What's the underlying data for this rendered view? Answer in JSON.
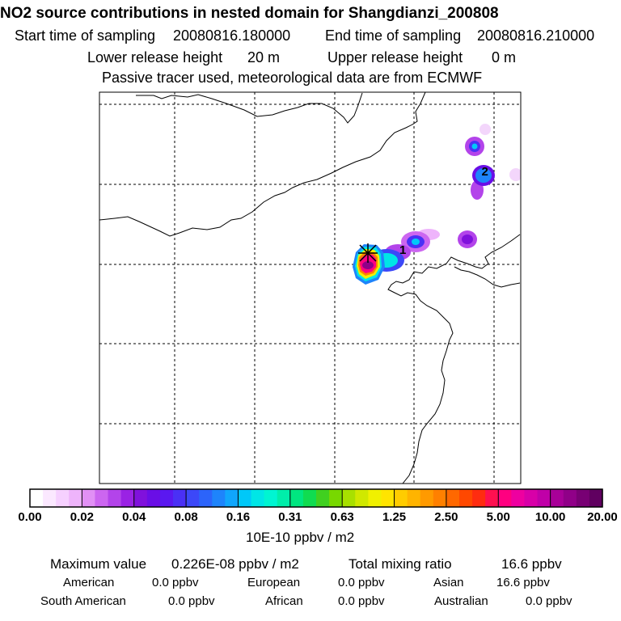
{
  "header": {
    "title": "NO2 source contributions in nested domain for Shangdianzi_200808",
    "start_label": "Start time of sampling",
    "start_value": "20080816.180000",
    "end_label": "End time of sampling",
    "end_value": "20080816.210000",
    "lower_label": "Lower release height",
    "lower_value": "20 m",
    "upper_label": "Upper release height",
    "upper_value": "0 m",
    "note": "Passive tracer used, meteorological data are from ECMWF"
  },
  "chart_data": {
    "type": "heatmap",
    "title": "NO2 source contributions in nested domain for Shangdianzi_200808",
    "colorbar_label": "10E-10 ppbv / m2",
    "colorbar_ticks": [
      "0.00",
      "0.02",
      "0.04",
      "0.08",
      "0.16",
      "0.31",
      "0.63",
      "1.25",
      "2.50",
      "5.00",
      "10.00",
      "20.00"
    ],
    "colorbar_colors": [
      "#ffffff",
      "#fbe8ff",
      "#f6d0ff",
      "#eeb4fb",
      "#e190f5",
      "#cc66f0",
      "#b344ea",
      "#9a22e4",
      "#8011dc",
      "#6a0ee6",
      "#5a18f0",
      "#4a30f5",
      "#3c48f8",
      "#2c64fa",
      "#1e84fb",
      "#10a6fc",
      "#00c8f8",
      "#00e6e6",
      "#00f5d2",
      "#00eeaa",
      "#00e680",
      "#10dc50",
      "#40d020",
      "#78d800",
      "#a8e000",
      "#d0e800",
      "#f0f000",
      "#ffe400",
      "#ffcc00",
      "#ffb400",
      "#ff9a00",
      "#ff8000",
      "#ff6800",
      "#ff4800",
      "#ff2c10",
      "#ff1050",
      "#ff0080",
      "#ee00a0",
      "#d800a8",
      "#c000a8",
      "#a80098",
      "#900088",
      "#780074",
      "#600060"
    ],
    "markers": [
      {
        "label": "1",
        "lon_frac": 0.72,
        "lat_frac": 0.405
      },
      {
        "label": "2",
        "lon_frac": 0.915,
        "lat_frac": 0.205
      }
    ],
    "grid": true
  },
  "stats": {
    "max_label": "Maximum value",
    "max_value": "0.226E-08 ppbv / m2",
    "total_label": "Total mixing ratio",
    "total_value": "16.6 ppbv",
    "regions": [
      {
        "name": "American",
        "value": "0.0 ppbv"
      },
      {
        "name": "European",
        "value": "0.0 ppbv"
      },
      {
        "name": "Asian",
        "value": "16.6 ppbv"
      },
      {
        "name": "South American",
        "value": "0.0 ppbv"
      },
      {
        "name": "African",
        "value": "0.0 ppbv"
      },
      {
        "name": "Australian",
        "value": "0.0 ppbv"
      }
    ]
  }
}
